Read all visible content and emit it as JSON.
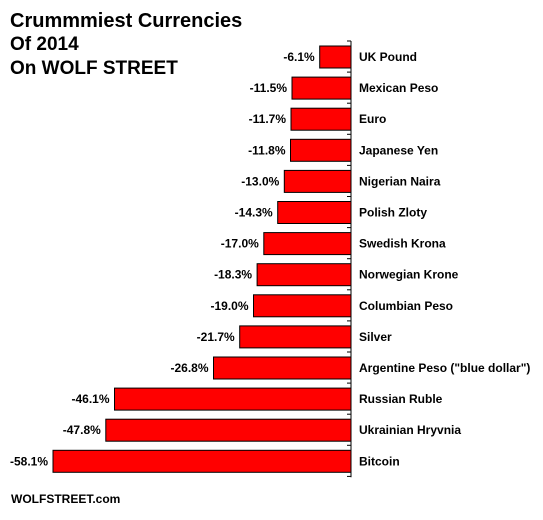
{
  "colors": {
    "bar": "#ff0000",
    "bar_outline": "#000000",
    "axis": "#000000",
    "background": "#ffffff"
  },
  "header": {
    "title_line1": "Crummmiest Currencies",
    "title_line2": "Of 2014",
    "title_line3": "On WOLF STREET"
  },
  "footer": {
    "source": "WOLFSTREET.com"
  },
  "chart_data": {
    "type": "bar",
    "orientation": "horizontal",
    "categories": [
      "UK Pound",
      "Mexican Peso",
      "Euro",
      "Japanese Yen",
      "Nigerian Naira",
      "Polish Zloty",
      "Swedish Krona",
      "Norwegian Krone",
      "Columbian Peso",
      "Silver",
      "Argentine Peso (\"blue dollar\")",
      "Russian Ruble",
      "Ukrainian Hryvnia",
      "Bitcoin"
    ],
    "values": [
      -6.1,
      -11.5,
      -11.7,
      -11.8,
      -13.0,
      -14.3,
      -17.0,
      -18.3,
      -19.0,
      -21.7,
      -26.8,
      -46.1,
      -47.8,
      -58.1
    ],
    "value_labels": [
      "-6.1%",
      "-11.5%",
      "-11.7%",
      "-11.8%",
      "-13.0%",
      "-14.3%",
      "-17.0%",
      "-18.3%",
      "-19.0%",
      "-21.7%",
      "-26.8%",
      "-46.1%",
      "-47.8%",
      "-58.1%"
    ],
    "title": "Crummmiest Currencies Of 2014 On WOLF STREET",
    "xlabel": "",
    "ylabel": "",
    "xlim": [
      -58.1,
      0
    ],
    "grid": false,
    "legend": "none"
  }
}
